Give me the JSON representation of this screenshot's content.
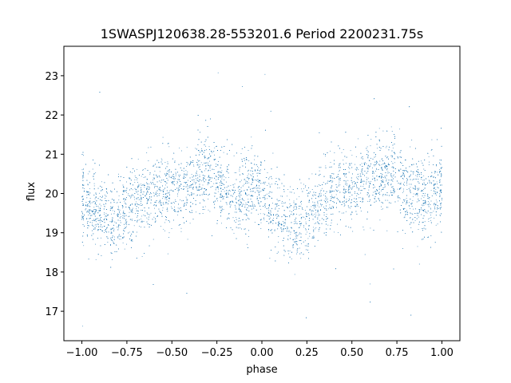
{
  "chart_data": {
    "type": "scatter",
    "title": "1SWASPJ120638.28-553201.6 Period 2200231.75s",
    "xlabel": "phase",
    "ylabel": "flux",
    "xlim": [
      -1.1,
      1.1
    ],
    "ylim": [
      16.25,
      23.75
    ],
    "xticks": [
      -1.0,
      -0.75,
      -0.5,
      -0.25,
      0.0,
      0.25,
      0.5,
      0.75,
      1.0
    ],
    "xtick_labels": [
      "−1.00",
      "−0.75",
      "−0.50",
      "−0.25",
      "0.00",
      "0.25",
      "0.50",
      "0.75",
      "1.00"
    ],
    "yticks": [
      17,
      18,
      19,
      20,
      21,
      22,
      23
    ],
    "ytick_labels": [
      "17",
      "18",
      "19",
      "20",
      "21",
      "22",
      "23"
    ],
    "grid": false,
    "marker_color": "#1f77b4",
    "series": [
      {
        "x": [
          -1.0,
          -0.95,
          -0.9,
          -0.85,
          -0.8,
          -0.75,
          -0.7,
          -0.65,
          -0.6,
          -0.55,
          -0.5,
          -0.45,
          -0.4,
          -0.35,
          -0.3,
          -0.25,
          -0.2,
          -0.15,
          -0.1,
          -0.05,
          0.0,
          0.05,
          0.1,
          0.15,
          0.2,
          0.25,
          0.3,
          0.35,
          0.4,
          0.45,
          0.5,
          0.55,
          0.6,
          0.65,
          0.7,
          0.75,
          0.8,
          0.85,
          0.9,
          0.95,
          1.0
        ],
        "y": [
          19.8,
          19.7,
          19.5,
          19.3,
          19.4,
          19.6,
          19.7,
          19.9,
          20.0,
          20.1,
          20.0,
          20.1,
          20.3,
          20.5,
          20.5,
          20.3,
          20.1,
          19.9,
          20.0,
          20.2,
          20.1,
          19.7,
          19.4,
          19.2,
          19.2,
          19.4,
          19.7,
          19.9,
          20.0,
          20.1,
          20.1,
          20.2,
          20.3,
          20.4,
          20.5,
          20.4,
          20.2,
          20.0,
          19.9,
          20.0,
          20.1
        ]
      }
    ]
  }
}
